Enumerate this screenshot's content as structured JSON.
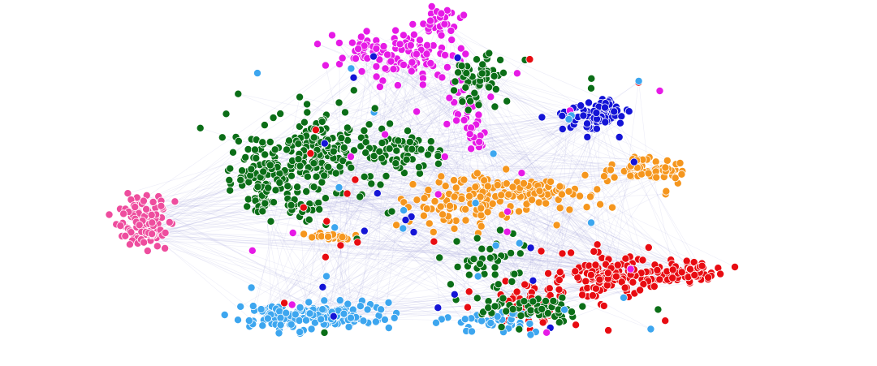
{
  "graph": {
    "type": "network-scatter",
    "node_stroke": "#ffffff",
    "edge_color": "#9a9ad8",
    "background": "#ffffff",
    "clusters": [
      {
        "id": "magenta",
        "color": "#e61ae6",
        "count": 190
      },
      {
        "id": "green",
        "color": "#0b6e17",
        "count": 420
      },
      {
        "id": "pink",
        "color": "#ee4d9e",
        "count": 110
      },
      {
        "id": "blue",
        "color": "#1414d6",
        "count": 90
      },
      {
        "id": "orange",
        "color": "#f5961e",
        "count": 260
      },
      {
        "id": "red",
        "color": "#e80c12",
        "count": 260
      },
      {
        "id": "lightblue",
        "color": "#3da6ef",
        "count": 200
      },
      {
        "id": "mixed-green",
        "color": "#0b6e17",
        "count": 90
      }
    ]
  }
}
